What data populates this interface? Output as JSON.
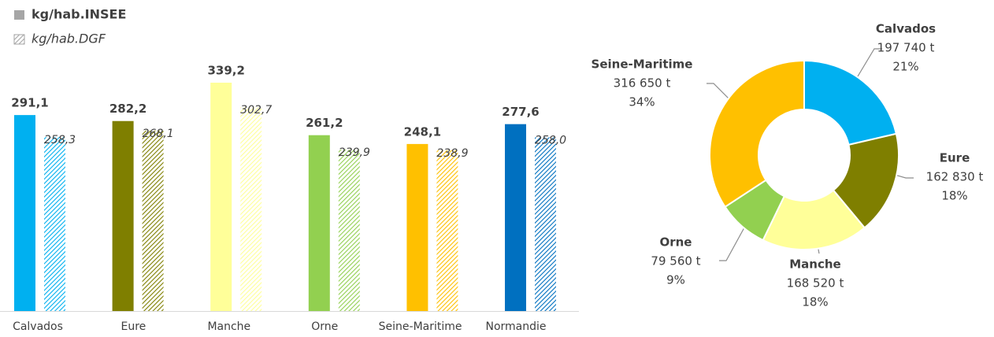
{
  "chart_data": [
    {
      "type": "bar",
      "categories": [
        "Calvados",
        "Eure",
        "Manche",
        "Orne",
        "Seine-Maritime",
        "Normandie"
      ],
      "colors": [
        "#00b0f0",
        "#7f7f00",
        "#ffff99",
        "#92d050",
        "#ffc000",
        "#0070c0"
      ],
      "series": [
        {
          "name": "kg/hab.INSEE",
          "color": "#a6a6a6",
          "values": [
            291.1,
            282.2,
            339.2,
            261.2,
            248.1,
            277.6
          ],
          "value_labels": [
            "291,1",
            "282,2",
            "339,2",
            "261,2",
            "248,1",
            "277,6"
          ]
        },
        {
          "name": "kg/hab.DGF",
          "color": "#a6a6a6",
          "hatched": true,
          "values": [
            258.3,
            268.1,
            302.7,
            239.9,
            238.9,
            258.0
          ],
          "value_labels": [
            "258,3",
            "268,1",
            "302,7",
            "239,9",
            "238,9",
            "258,0"
          ]
        }
      ],
      "legend": "top-left"
    },
    {
      "type": "pie",
      "donut": true,
      "categories": [
        "Calvados",
        "Eure",
        "Manche",
        "Orne",
        "Seine-Maritime"
      ],
      "colors": [
        "#00b0f0",
        "#7f7f00",
        "#ffff99",
        "#92d050",
        "#ffc000"
      ],
      "values": [
        197740,
        162830,
        168520,
        79560,
        316650
      ],
      "value_labels": [
        "197 740 t",
        "162 830 t",
        "168 520 t",
        "79 560 t",
        "316 650 t"
      ],
      "percentages": [
        21,
        18,
        18,
        9,
        34
      ],
      "percentage_labels": [
        "21%",
        "18%",
        "18%",
        "9%",
        "34%"
      ]
    }
  ]
}
